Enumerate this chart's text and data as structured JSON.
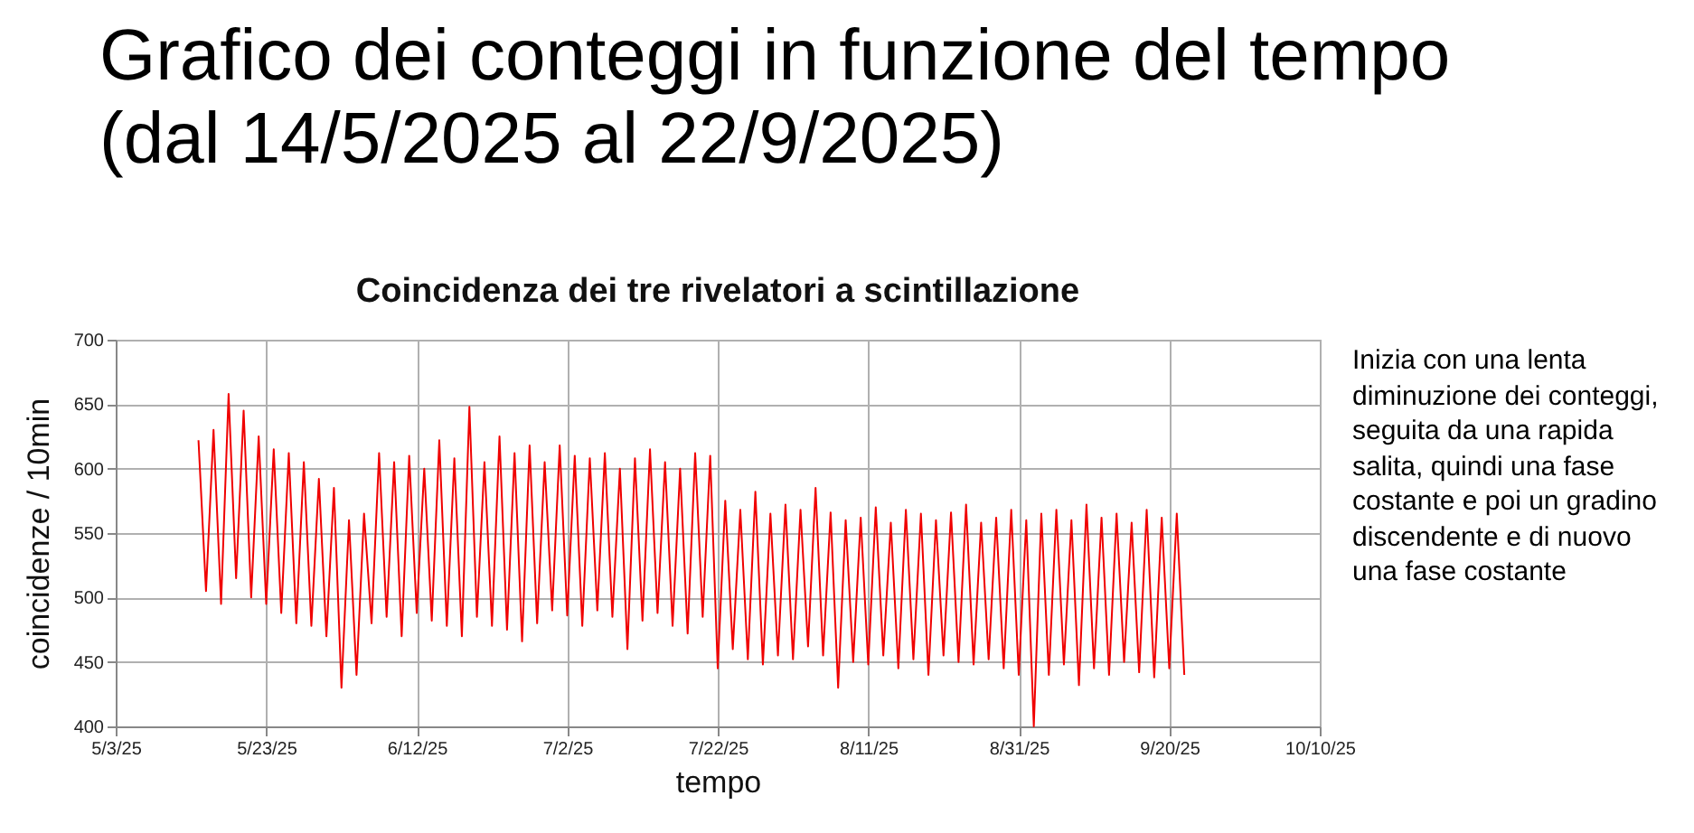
{
  "chart_data": {
    "type": "line",
    "title": "Grafico dei conteggi in funzione del tempo (dal 14/5/2025 al 22/9/2025)",
    "subtitle": "Coincidenza dei tre rivelatori a scintillazione",
    "xlabel": "tempo",
    "ylabel": "coincidenze / 10min",
    "annotations": [
      "Inizia con una lenta diminuzione dei conteggi, seguita da una rapida salita, quindi una fase costante e poi un gradino discendente e di nuovo una fase costante"
    ],
    "x": [
      "2025-05-14",
      "2025-05-15",
      "2025-05-16",
      "2025-05-17",
      "2025-05-18",
      "2025-05-19",
      "2025-05-20",
      "2025-05-21",
      "2025-05-22",
      "2025-05-23",
      "2025-05-24",
      "2025-05-25",
      "2025-05-26",
      "2025-05-27",
      "2025-05-28",
      "2025-05-29",
      "2025-05-30",
      "2025-05-31",
      "2025-06-01",
      "2025-06-02",
      "2025-06-03",
      "2025-06-04",
      "2025-06-05",
      "2025-06-06",
      "2025-06-07",
      "2025-06-08",
      "2025-06-09",
      "2025-06-10",
      "2025-06-11",
      "2025-06-12",
      "2025-06-13",
      "2025-06-14",
      "2025-06-15",
      "2025-06-16",
      "2025-06-17",
      "2025-06-18",
      "2025-06-19",
      "2025-06-20",
      "2025-06-21",
      "2025-06-22",
      "2025-06-23",
      "2025-06-24",
      "2025-06-25",
      "2025-06-26",
      "2025-06-27",
      "2025-06-28",
      "2025-06-29",
      "2025-06-30",
      "2025-07-01",
      "2025-07-02",
      "2025-07-03",
      "2025-07-04",
      "2025-07-05",
      "2025-07-06",
      "2025-07-07",
      "2025-07-08",
      "2025-07-09",
      "2025-07-10",
      "2025-07-11",
      "2025-07-12",
      "2025-07-13",
      "2025-07-14",
      "2025-07-15",
      "2025-07-16",
      "2025-07-17",
      "2025-07-18",
      "2025-07-19",
      "2025-07-20",
      "2025-07-21",
      "2025-07-22",
      "2025-07-23",
      "2025-07-24",
      "2025-07-25",
      "2025-07-26",
      "2025-07-27",
      "2025-07-28",
      "2025-07-29",
      "2025-07-30",
      "2025-07-31",
      "2025-08-01",
      "2025-08-02",
      "2025-08-03",
      "2025-08-04",
      "2025-08-05",
      "2025-08-06",
      "2025-08-07",
      "2025-08-08",
      "2025-08-09",
      "2025-08-10",
      "2025-08-11",
      "2025-08-12",
      "2025-08-13",
      "2025-08-14",
      "2025-08-15",
      "2025-08-16",
      "2025-08-17",
      "2025-08-18",
      "2025-08-19",
      "2025-08-20",
      "2025-08-21",
      "2025-08-22",
      "2025-08-23",
      "2025-08-24",
      "2025-08-25",
      "2025-08-26",
      "2025-08-27",
      "2025-08-28",
      "2025-08-29",
      "2025-08-30",
      "2025-08-31",
      "2025-09-01",
      "2025-09-02",
      "2025-09-03",
      "2025-09-04",
      "2025-09-05",
      "2025-09-06",
      "2025-09-07",
      "2025-09-08",
      "2025-09-09",
      "2025-09-10",
      "2025-09-11",
      "2025-09-12",
      "2025-09-13",
      "2025-09-14",
      "2025-09-15",
      "2025-09-16",
      "2025-09-17",
      "2025-09-18",
      "2025-09-19",
      "2025-09-20",
      "2025-09-21",
      "2025-09-22"
    ],
    "series": [
      {
        "color": "#f00000",
        "values": [
          622,
          505,
          630,
          495,
          658,
          515,
          645,
          500,
          625,
          495,
          615,
          488,
          612,
          480,
          605,
          478,
          592,
          470,
          585,
          430,
          560,
          440,
          565,
          480,
          612,
          485,
          605,
          470,
          610,
          488,
          600,
          482,
          622,
          478,
          608,
          470,
          648,
          485,
          605,
          478,
          625,
          475,
          612,
          466,
          618,
          480,
          605,
          490,
          618,
          486,
          610,
          478,
          608,
          490,
          612,
          485,
          600,
          460,
          608,
          482,
          615,
          488,
          605,
          478,
          600,
          472,
          612,
          485,
          610,
          445,
          575,
          460,
          568,
          452,
          582,
          448,
          565,
          455,
          572,
          452,
          568,
          462,
          585,
          455,
          566,
          430,
          560,
          450,
          562,
          448,
          570,
          455,
          558,
          445,
          568,
          452,
          565,
          440,
          560,
          455,
          566,
          450,
          572,
          448,
          558,
          452,
          562,
          445,
          568,
          440,
          560,
          400,
          565,
          440,
          568,
          448,
          560,
          432,
          572,
          445,
          562,
          440,
          565,
          450,
          558,
          442,
          568,
          438,
          562,
          445,
          565,
          440
        ]
      }
    ],
    "xlim": [
      "2025-05-03",
      "2025-10-10"
    ],
    "xticks": [
      {
        "value": "2025-05-03",
        "label": "5/3/25"
      },
      {
        "value": "2025-05-23",
        "label": "5/23/25"
      },
      {
        "value": "2025-06-12",
        "label": "6/12/25"
      },
      {
        "value": "2025-07-02",
        "label": "7/2/25"
      },
      {
        "value": "2025-07-22",
        "label": "7/22/25"
      },
      {
        "value": "2025-08-11",
        "label": "8/11/25"
      },
      {
        "value": "2025-08-31",
        "label": "8/31/25"
      },
      {
        "value": "2025-09-20",
        "label": "9/20/25"
      },
      {
        "value": "2025-10-10",
        "label": "10/10/25"
      }
    ],
    "ylim": [
      400,
      700
    ],
    "yticks": [
      400,
      450,
      500,
      550,
      600,
      650,
      700
    ],
    "grid": true,
    "line_style": "solid",
    "marker": "none"
  }
}
